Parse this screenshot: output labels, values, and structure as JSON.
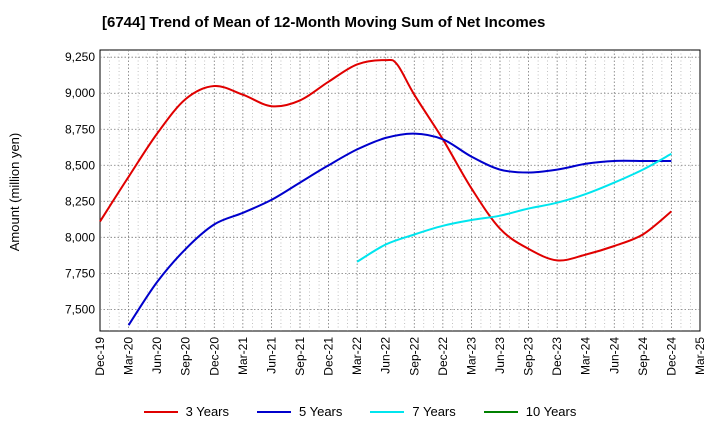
{
  "chart_data": {
    "type": "line",
    "title": "[6744]  Trend of Mean of 12-Month Moving Sum of Net Incomes",
    "xlabel": "",
    "ylabel": "Amount (million yen)",
    "ylim": [
      7350,
      9300
    ],
    "yticks": [
      7500,
      7750,
      8000,
      8250,
      8500,
      8750,
      9000,
      9250
    ],
    "ytick_labels": [
      "7,500",
      "7,750",
      "8,000",
      "8,250",
      "8,500",
      "8,750",
      "9,000",
      "9,250"
    ],
    "x_categories": [
      "Dec-19",
      "Mar-20",
      "Jun-20",
      "Sep-20",
      "Dec-20",
      "Mar-21",
      "Jun-21",
      "Sep-21",
      "Dec-21",
      "Mar-22",
      "Jun-22",
      "Sep-22",
      "Dec-22",
      "Mar-23",
      "Jun-23",
      "Sep-23",
      "Dec-23",
      "Mar-24",
      "Jun-24",
      "Sep-24",
      "Dec-24",
      "Mar-25"
    ],
    "grid": true,
    "legend_position": "bottom",
    "series": [
      {
        "name": "3 Years",
        "color": "#e00000",
        "points": [
          [
            0,
            8110
          ],
          [
            1,
            8420
          ],
          [
            2,
            8720
          ],
          [
            3,
            8960
          ],
          [
            4,
            9050
          ],
          [
            5,
            8990
          ],
          [
            6,
            8910
          ],
          [
            7,
            8950
          ],
          [
            8,
            9080
          ],
          [
            9,
            9200
          ],
          [
            10,
            9230
          ],
          [
            10.4,
            9200
          ],
          [
            11,
            8990
          ],
          [
            12,
            8680
          ],
          [
            13,
            8340
          ],
          [
            14,
            8060
          ],
          [
            15,
            7920
          ],
          [
            16,
            7840
          ],
          [
            17,
            7880
          ],
          [
            18,
            7940
          ],
          [
            19,
            8020
          ],
          [
            20,
            8180
          ]
        ]
      },
      {
        "name": "5 Years",
        "color": "#0000cc",
        "points": [
          [
            1,
            7390
          ],
          [
            2,
            7690
          ],
          [
            3,
            7920
          ],
          [
            4,
            8090
          ],
          [
            5,
            8170
          ],
          [
            6,
            8260
          ],
          [
            7,
            8380
          ],
          [
            8,
            8500
          ],
          [
            9,
            8610
          ],
          [
            10,
            8690
          ],
          [
            11,
            8720
          ],
          [
            12,
            8680
          ],
          [
            13,
            8560
          ],
          [
            14,
            8470
          ],
          [
            15,
            8450
          ],
          [
            16,
            8470
          ],
          [
            17,
            8510
          ],
          [
            18,
            8530
          ],
          [
            19,
            8530
          ],
          [
            20,
            8530
          ]
        ]
      },
      {
        "name": "7 Years",
        "color": "#00e5ee",
        "points": [
          [
            9,
            7830
          ],
          [
            10,
            7950
          ],
          [
            11,
            8020
          ],
          [
            12,
            8080
          ],
          [
            13,
            8120
          ],
          [
            14,
            8150
          ],
          [
            15,
            8200
          ],
          [
            16,
            8240
          ],
          [
            17,
            8300
          ],
          [
            18,
            8380
          ],
          [
            19,
            8470
          ],
          [
            20,
            8580
          ]
        ]
      },
      {
        "name": "10 Years",
        "color": "#008000",
        "points": []
      }
    ]
  }
}
